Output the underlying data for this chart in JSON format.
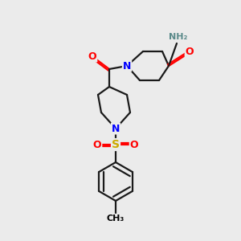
{
  "bg_color": "#ebebeb",
  "atom_colors": {
    "N": "#0000ff",
    "O": "#ff0000",
    "S": "#ccaa00",
    "C": "#000000",
    "H": "#5a8a8a"
  },
  "bond_color": "#1a1a1a",
  "bond_width": 1.6,
  "figsize": [
    3.0,
    3.0
  ],
  "dpi": 100
}
